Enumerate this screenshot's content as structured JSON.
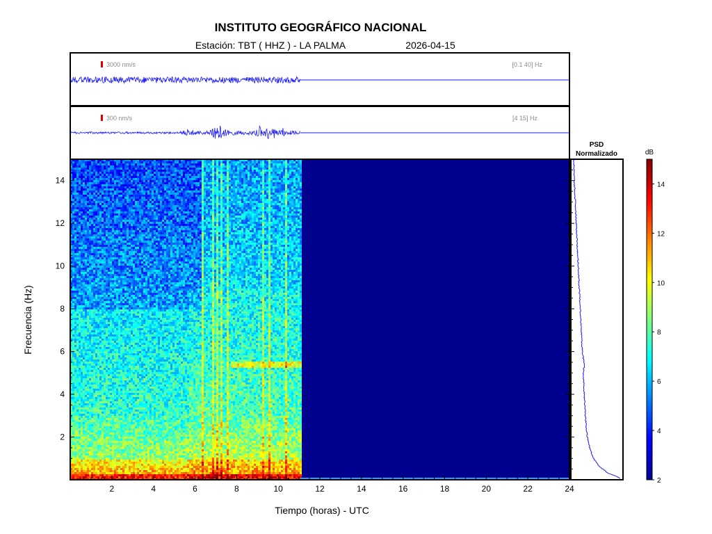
{
  "header": {
    "title": "INSTITUTO GEOGRÁFICO NACIONAL",
    "station": "Estación:  TBT ( HHZ ) - LA PALMA",
    "date": "2026-04-15"
  },
  "colors": {
    "trace": "#1a1aff",
    "scale_bar": "#e00000",
    "spectrogram_empty": "#00008f",
    "frame": "#000000"
  },
  "chart_data": [
    {
      "type": "line",
      "name": "seismogram-broadband",
      "scale_label": "3000 nm/s",
      "band_label": "[0.1 40] Hz",
      "x_range_hours": [
        0,
        24
      ],
      "data_end_hours": 11.05,
      "amplitude_profile": [
        {
          "t": 0,
          "a": 0.45
        },
        {
          "t": 2,
          "a": 0.42
        },
        {
          "t": 4,
          "a": 0.4
        },
        {
          "t": 6,
          "a": 0.42
        },
        {
          "t": 8,
          "a": 0.4
        },
        {
          "t": 10,
          "a": 0.4
        },
        {
          "t": 11.05,
          "a": 0.4
        }
      ]
    },
    {
      "type": "line",
      "name": "seismogram-filtered",
      "scale_label": "300 nm/s",
      "band_label": "[4 15] Hz",
      "x_range_hours": [
        0,
        24
      ],
      "data_end_hours": 11.05,
      "events_hours": [
        5.7,
        6.9,
        7.05,
        7.25,
        7.6,
        9.1,
        9.5,
        9.8,
        10.2
      ],
      "event_amplitudes": [
        0.35,
        0.8,
        1.0,
        0.7,
        0.5,
        0.55,
        0.6,
        0.45,
        0.4
      ]
    },
    {
      "type": "heatmap",
      "name": "spectrogram",
      "xlabel": "Tiempo (horas) - UTC",
      "ylabel": "Frecuencia  (Hz)",
      "xlim": [
        0,
        24
      ],
      "ylim": [
        0,
        15
      ],
      "xticks": [
        2,
        4,
        6,
        8,
        10,
        12,
        14,
        16,
        18,
        20,
        22,
        24
      ],
      "yticks": [
        2,
        4,
        6,
        8,
        10,
        12,
        14
      ],
      "data_end_hours": 11.05,
      "bright_lines_hours": [
        6.35,
        6.8,
        7.05,
        7.25,
        7.55,
        9.25,
        9.55,
        10.3
      ],
      "tremor_band_hz": 5.4
    },
    {
      "type": "line",
      "name": "psd",
      "title_line1": "PSD",
      "title_line2": "Normalizado",
      "freq_hz": [
        0.1,
        0.3,
        0.6,
        1,
        1.5,
        2,
        3,
        4,
        5,
        5.4,
        6,
        7,
        8,
        9,
        10,
        11,
        12,
        13,
        14,
        15
      ],
      "psd_norm": [
        0.95,
        0.72,
        0.55,
        0.42,
        0.35,
        0.3,
        0.26,
        0.24,
        0.22,
        0.24,
        0.2,
        0.18,
        0.16,
        0.14,
        0.12,
        0.1,
        0.08,
        0.06,
        0.04,
        0.03
      ]
    },
    {
      "type": "heatmap",
      "name": "colorbar",
      "label": "dB",
      "range": [
        2,
        15
      ],
      "ticks": [
        2,
        4,
        6,
        8,
        10,
        12,
        14
      ],
      "colormap": "jet"
    }
  ]
}
